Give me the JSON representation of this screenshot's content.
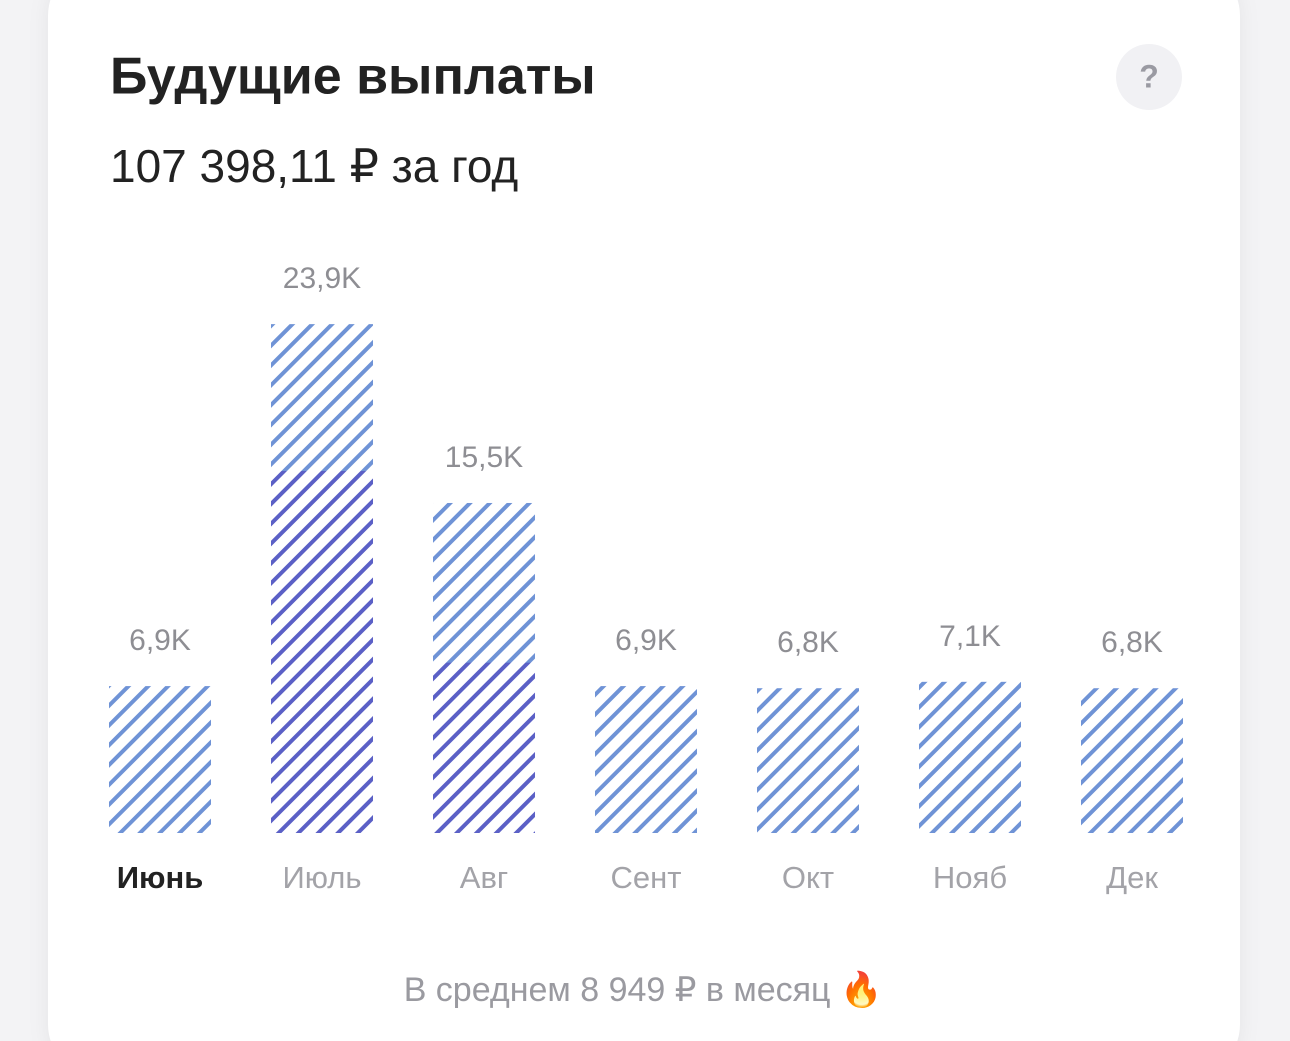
{
  "chart_data": {
    "type": "bar",
    "title": "Будущие выплаты",
    "subtitle": "107 398,11 ₽ за год",
    "help": "?",
    "footer": "В среднем 8 949 ₽ в месяц 🔥",
    "categories": [
      "Июнь",
      "Июль",
      "Авг",
      "Сент",
      "Окт",
      "Нояб",
      "Дек"
    ],
    "selected": 0,
    "values": [
      6.9,
      23.9,
      15.5,
      6.9,
      6.8,
      7.1,
      6.8
    ],
    "value_labels": [
      "6,9K",
      "23,9K",
      "15,5K",
      "6,9K",
      "6,8K",
      "7,1K",
      "6,8K"
    ],
    "color": "#6f93d6",
    "series": [
      {
        "color": "#5b60c6",
        "values": [
          null,
          17.0,
          8.0,
          null,
          null,
          null,
          null
        ]
      }
    ],
    "ylim": [
      0,
      24
    ]
  }
}
